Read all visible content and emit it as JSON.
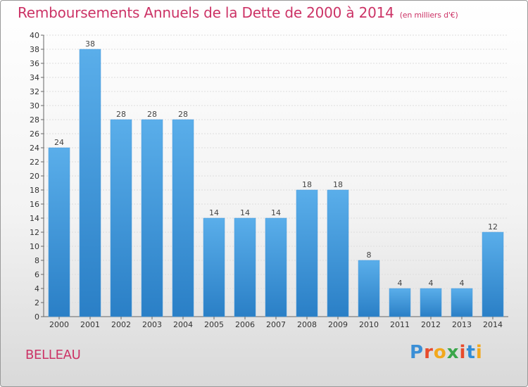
{
  "title": "Remboursements Annuels de la Dette de 2000 à 2014",
  "subtitle": "(en milliers d'€)",
  "commune": "BELLEAU",
  "logo": {
    "text": "Proxiti",
    "colors": [
      "#3b8fd6",
      "#e84b2c",
      "#f2a81d",
      "#3aa64a",
      "#e84b2c",
      "#2f8cd6",
      "#f2a81d"
    ]
  },
  "chart_data": {
    "type": "bar",
    "title": "Remboursements Annuels de la Dette de 2000 à 2014",
    "subtitle": "(en milliers d'€)",
    "categories": [
      "2000",
      "2001",
      "2002",
      "2003",
      "2004",
      "2005",
      "2006",
      "2007",
      "2008",
      "2009",
      "2010",
      "2011",
      "2012",
      "2013",
      "2014"
    ],
    "values": [
      24,
      38,
      28,
      28,
      28,
      14,
      14,
      14,
      18,
      18,
      8,
      4,
      4,
      4,
      12
    ],
    "ylim": [
      0,
      40
    ],
    "ytick_step": 2,
    "grid": true,
    "bar_color_top": "#5aaeea",
    "bar_color_bottom": "#2a7fc6",
    "label_color": "#444444"
  }
}
